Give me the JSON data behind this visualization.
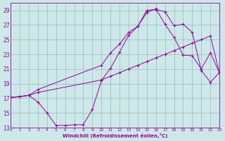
{
  "bg_color": "#cce8e8",
  "grid_color": "#99bbbb",
  "line_color": "#990099",
  "xlabel": "Windchill (Refroidissement éolien,°C)",
  "xlim": [
    0,
    23
  ],
  "ylim": [
    13,
    30
  ],
  "yticks": [
    13,
    15,
    17,
    19,
    21,
    23,
    25,
    27,
    29
  ],
  "xticks": [
    0,
    1,
    2,
    3,
    4,
    5,
    6,
    7,
    8,
    9,
    10,
    11,
    12,
    13,
    14,
    15,
    16,
    17,
    18,
    19,
    20,
    21,
    22,
    23
  ],
  "lines": [
    {
      "x": [
        0,
        1,
        2,
        3,
        4,
        5,
        6,
        7,
        8,
        9,
        10,
        11,
        12,
        13,
        14,
        15,
        16,
        17,
        18,
        19,
        20,
        21,
        22,
        23
      ],
      "y": [
        17.1,
        17.2,
        17.4,
        16.5,
        15.0,
        13.3,
        13.3,
        13.4,
        13.4,
        15.5,
        19.4,
        21.1,
        23.3,
        25.6,
        26.8,
        29.0,
        29.1,
        28.8,
        26.9,
        27.1,
        26.0,
        20.8,
        19.2,
        20.5
      ]
    },
    {
      "x": [
        0,
        2,
        3,
        10,
        11,
        12,
        13,
        14,
        15,
        16,
        17,
        18,
        19,
        20,
        21,
        22,
        23
      ],
      "y": [
        17.1,
        17.4,
        18.2,
        21.5,
        23.2,
        24.4,
        26.0,
        26.8,
        28.7,
        29.2,
        27.1,
        25.3,
        22.9,
        22.8,
        21.0,
        23.2,
        20.5
      ]
    },
    {
      "x": [
        0,
        2,
        3,
        10,
        11,
        12,
        13,
        14,
        15,
        16,
        17,
        18,
        19,
        20,
        21,
        22,
        23
      ],
      "y": [
        17.1,
        17.4,
        17.8,
        19.5,
        20.0,
        20.5,
        21.0,
        21.5,
        22.0,
        22.5,
        23.0,
        23.5,
        24.0,
        24.5,
        25.0,
        25.5,
        20.5
      ]
    }
  ]
}
